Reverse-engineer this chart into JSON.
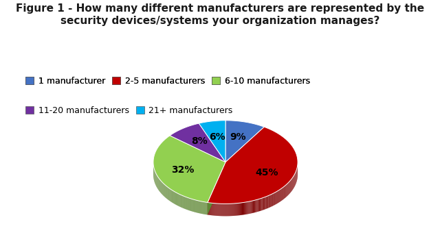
{
  "title_line1": "Figure 1 - How many different manufacturers are represented by the",
  "title_line2": "security devices/systems your organization manages?",
  "slices": [
    9,
    45,
    32,
    8,
    6
  ],
  "labels": [
    "1 manufacturer",
    "2-5 manufacturers",
    "6-10 manufacturers",
    "11-20 manufacturers",
    "21+ manufacturers"
  ],
  "colors": [
    "#4472C4",
    "#C00000",
    "#92D050",
    "#7030A0",
    "#00B0F0"
  ],
  "pct_labels": [
    "9%",
    "45%",
    "32%",
    "8%",
    "6%"
  ],
  "background_color": "#FFFFFF",
  "title_fontsize": 11,
  "legend_fontsize": 9
}
